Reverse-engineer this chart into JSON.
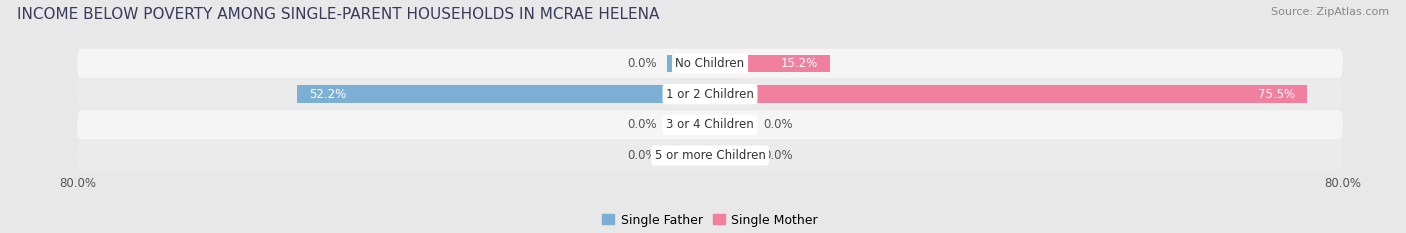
{
  "title": "INCOME BELOW POVERTY AMONG SINGLE-PARENT HOUSEHOLDS IN MCRAE HELENA",
  "source": "Source: ZipAtlas.com",
  "categories": [
    "No Children",
    "1 or 2 Children",
    "3 or 4 Children",
    "5 or more Children"
  ],
  "single_father": [
    0.0,
    52.2,
    0.0,
    0.0
  ],
  "single_mother": [
    15.2,
    75.5,
    0.0,
    0.0
  ],
  "xlim": [
    -80,
    80
  ],
  "xtick_labels": [
    "80.0%",
    "80.0%"
  ],
  "father_color": "#7bafd4",
  "mother_color": "#f07fa0",
  "father_label": "Single Father",
  "mother_label": "Single Mother",
  "bar_height": 0.58,
  "background_color": "#e8e8e8",
  "bar_row_bg": "#f5f5f5",
  "bar_row_bg_alt": "#ebebeb",
  "title_color": "#3a3a5c",
  "source_color": "#888888",
  "label_color": "#555555",
  "category_color": "#333333",
  "title_fontsize": 11,
  "source_fontsize": 8,
  "label_fontsize": 8.5,
  "category_fontsize": 8.5,
  "legend_fontsize": 9,
  "value_fontsize": 8.5,
  "zero_bar_width": 5.5
}
